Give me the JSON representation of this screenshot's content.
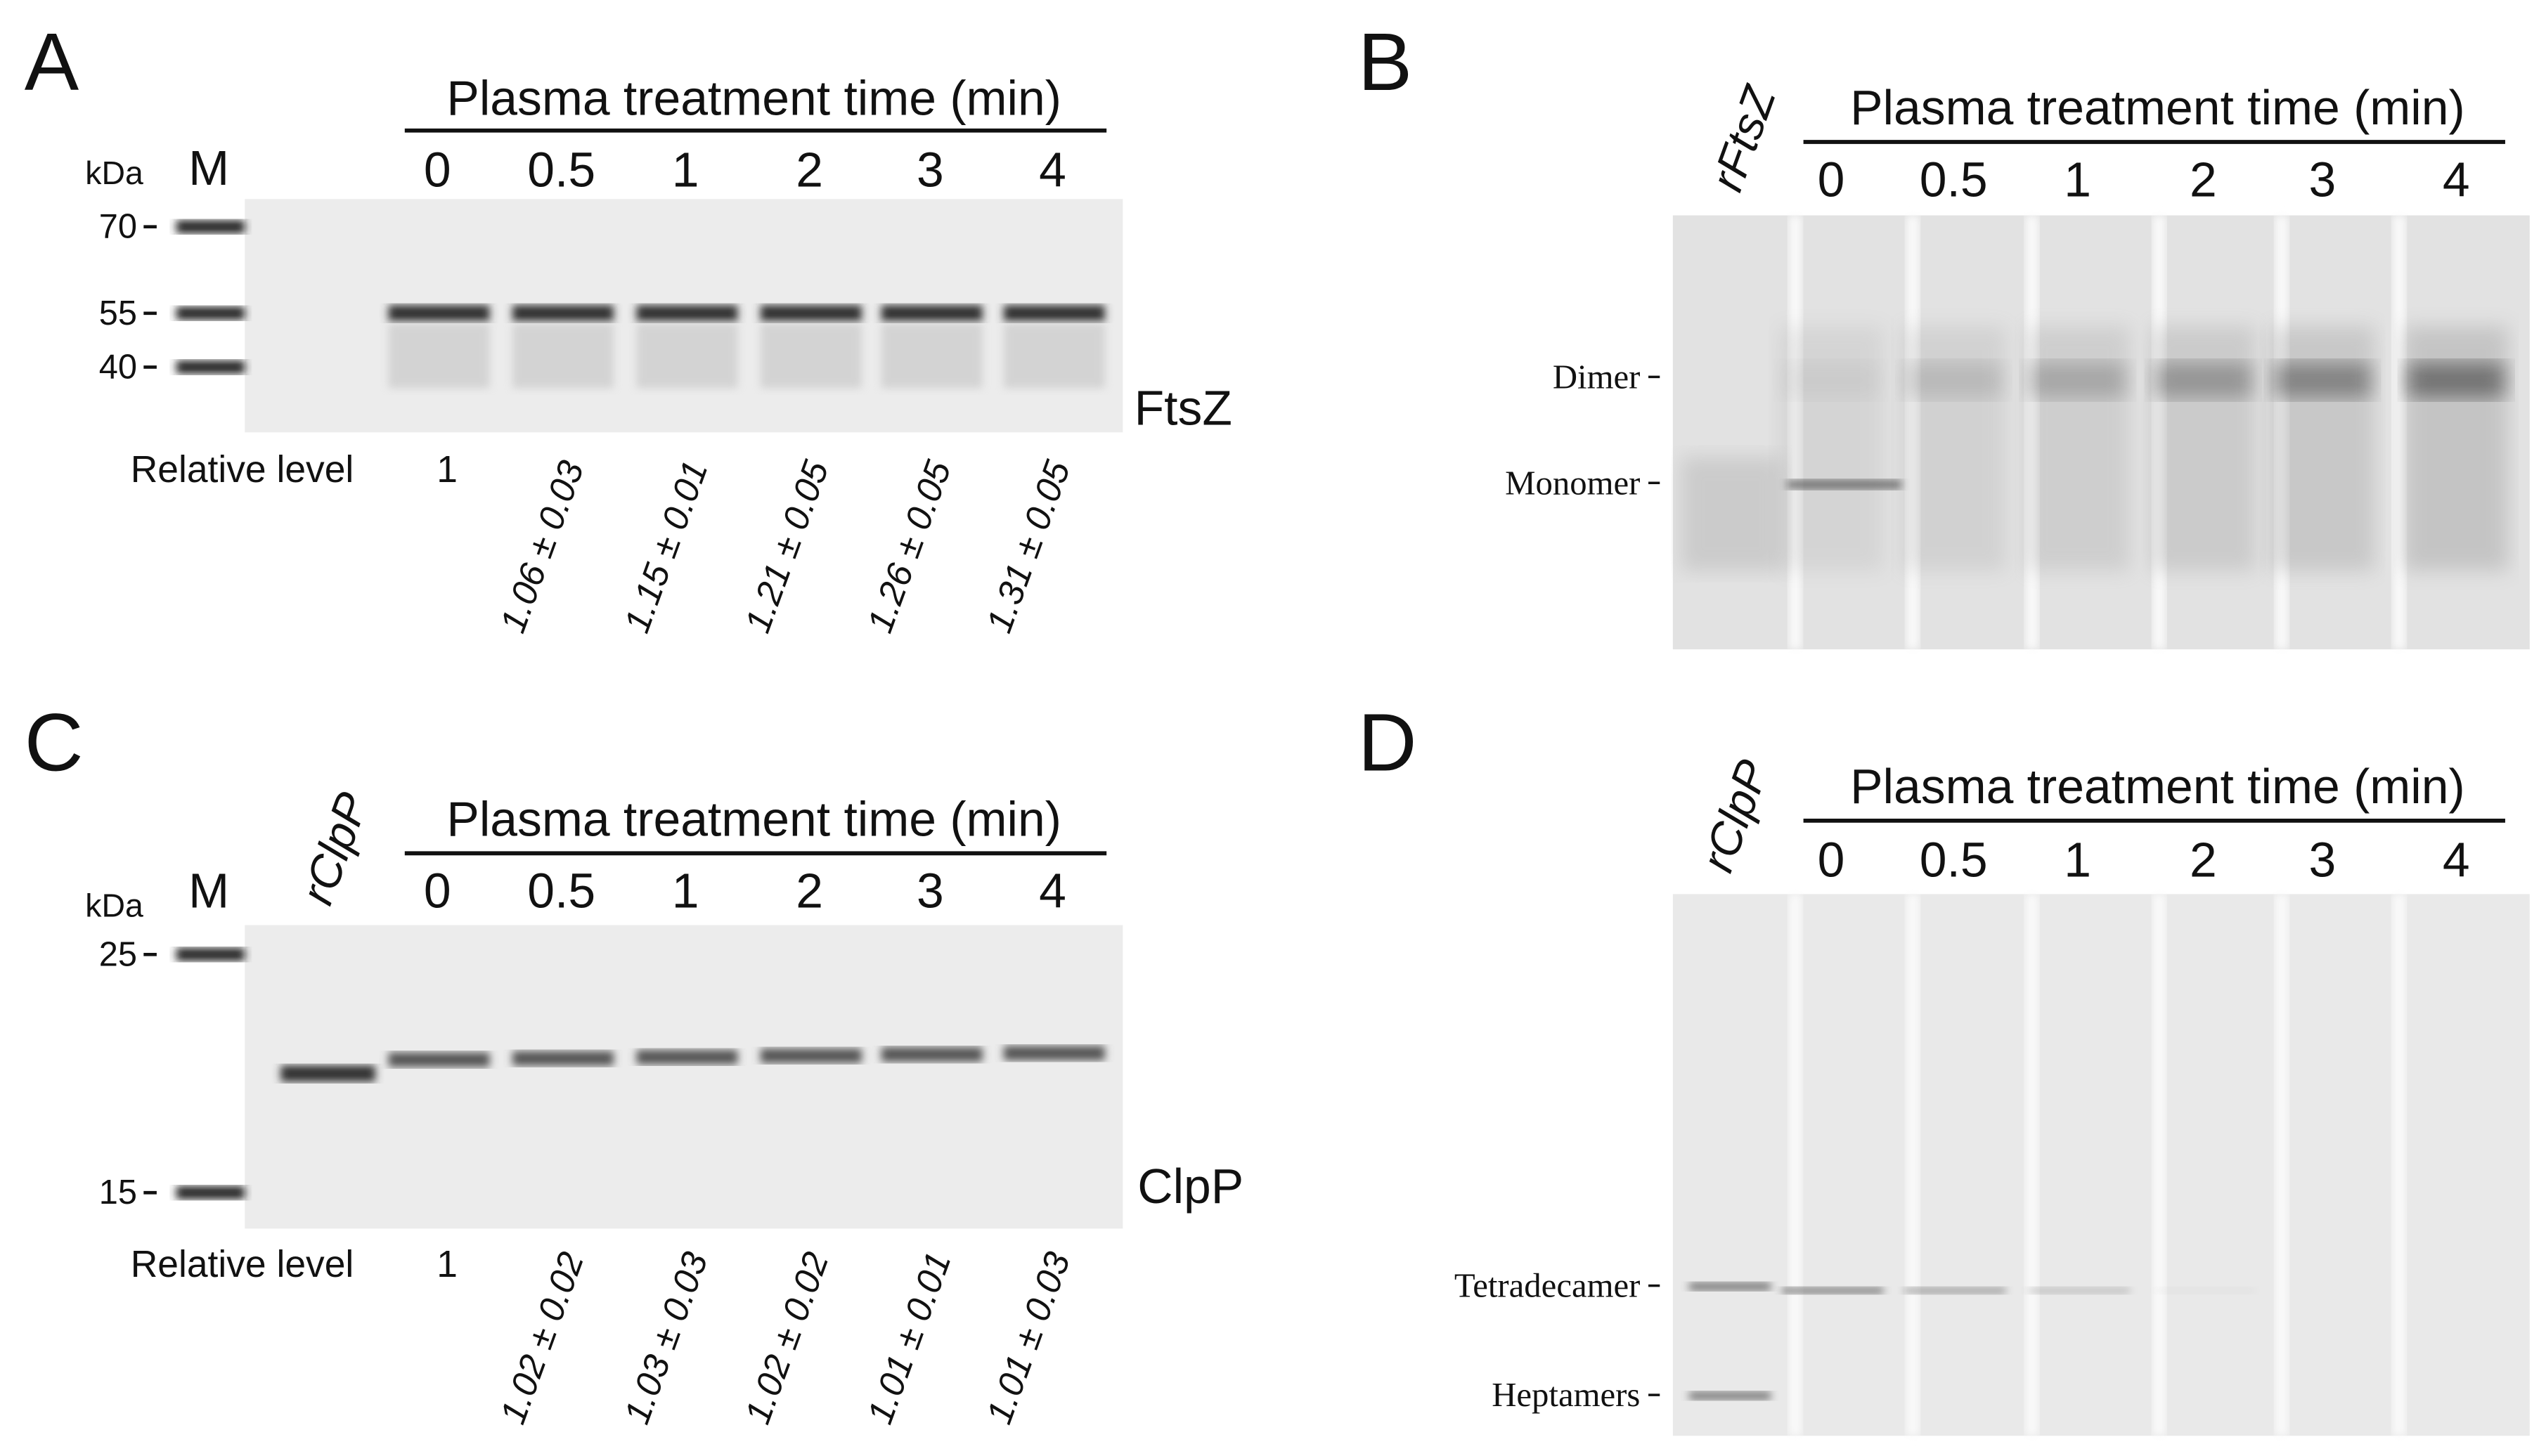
{
  "panels": [
    {
      "label": "A",
      "header": "Plasma treatment time (min)",
      "lanes": [
        "0",
        "0.5",
        "1",
        "2",
        "3",
        "4"
      ],
      "unit": "kDa",
      "marker_lane": "M",
      "markers": [
        "70",
        "55",
        "40"
      ],
      "protein": "FtsZ",
      "relative_label": "Relative level",
      "relative_levels": [
        "1",
        "1.06 ± 0.03",
        "1.15 ± 0.01",
        "1.21 ± 0.05",
        "1.26 ± 0.05",
        "1.31 ± 0.05"
      ]
    },
    {
      "label": "B",
      "sample_lane": "rFtsZ",
      "header": "Plasma treatment time (min)",
      "lanes": [
        "0",
        "0.5",
        "1",
        "2",
        "3",
        "4"
      ],
      "band_labels": [
        "Dimer",
        "Monomer"
      ]
    },
    {
      "label": "C",
      "sample_lane": "rClpP",
      "header": "Plasma treatment time (min)",
      "lanes": [
        "0",
        "0.5",
        "1",
        "2",
        "3",
        "4"
      ],
      "unit": "kDa",
      "marker_lane": "M",
      "markers": [
        "25",
        "15"
      ],
      "protein": "ClpP",
      "relative_label": "Relative level",
      "relative_levels": [
        "1",
        "1.02 ± 0.02",
        "1.03 ± 0.03",
        "1.02 ± 0.02",
        "1.01 ± 0.01",
        "1.01 ± 0.03"
      ]
    },
    {
      "label": "D",
      "sample_lane": "rClpP",
      "header": "Plasma treatment time (min)",
      "lanes": [
        "0",
        "0.5",
        "1",
        "2",
        "3",
        "4"
      ],
      "band_labels": [
        "Tetradecamer",
        "Heptamers"
      ]
    }
  ]
}
